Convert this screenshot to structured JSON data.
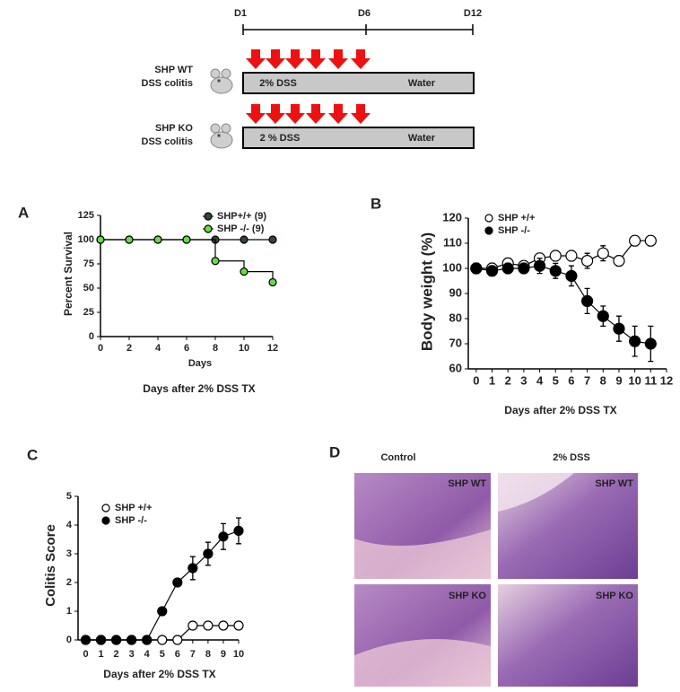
{
  "schema": {
    "timeline_labels": [
      "D1",
      "D6",
      "D12"
    ],
    "groups": [
      {
        "name": "SHP WT",
        "model": "DSS colitis",
        "treatment": "2% DSS",
        "water": "Water"
      },
      {
        "name": "SHP KO",
        "model": "DSS colitis",
        "treatment": "2 % DSS",
        "water": "Water"
      }
    ]
  },
  "chart_data": [
    {
      "type": "line",
      "panel": "A",
      "step": true,
      "ylabel": "Percent Survival",
      "xlabel": "Days",
      "caption": "Days after 2% DSS TX",
      "xlim": [
        0,
        12
      ],
      "xticks": [
        0,
        2,
        4,
        6,
        8,
        10,
        12
      ],
      "ylim": [
        0,
        125
      ],
      "yticks": [
        0,
        25,
        50,
        75,
        100,
        125
      ],
      "x": [
        0,
        2,
        4,
        6,
        8,
        10,
        12
      ],
      "series": [
        {
          "name": "SHP+/+ (9)",
          "color": "#2f4a2f",
          "values": [
            100,
            100,
            100,
            100,
            100,
            100,
            100
          ]
        },
        {
          "name": "SHP -/- (9)",
          "color": "#66dd44",
          "values": [
            100,
            100,
            100,
            100,
            78,
            67,
            56
          ]
        }
      ]
    },
    {
      "type": "line",
      "panel": "B",
      "ylabel": "Body weight (%)",
      "xlabel": "Days after 2% DSS TX",
      "xlim": [
        -0.5,
        12
      ],
      "xticks": [
        0,
        1,
        2,
        3,
        4,
        5,
        6,
        7,
        8,
        9,
        10,
        11,
        12
      ],
      "ylim": [
        60,
        120
      ],
      "yticks": [
        60,
        70,
        80,
        90,
        100,
        110,
        120
      ],
      "x": [
        0,
        1,
        2,
        3,
        4,
        5,
        6,
        7,
        8,
        9,
        10,
        11
      ],
      "series": [
        {
          "name": "SHP +/+",
          "color": "#ffffff",
          "values": [
            100,
            100,
            102,
            101,
            104,
            105,
            105,
            103,
            106,
            103,
            111,
            111
          ],
          "errors": [
            2,
            2,
            2,
            2,
            2,
            2,
            2,
            3,
            3,
            2,
            2,
            2
          ]
        },
        {
          "name": "SHP -/-",
          "color": "#000000",
          "values": [
            100,
            99,
            100,
            100,
            101,
            99,
            97,
            87,
            81,
            76,
            71,
            70
          ],
          "errors": [
            2,
            2,
            2,
            2,
            3,
            3,
            4,
            5,
            4,
            5,
            6,
            7
          ]
        }
      ]
    },
    {
      "type": "line",
      "panel": "C",
      "ylabel": "Colitis Score",
      "xlabel": "Days after 2% DSS TX",
      "xlim": [
        -0.5,
        10
      ],
      "xticks": [
        0,
        1,
        2,
        3,
        4,
        5,
        6,
        7,
        8,
        9,
        10
      ],
      "ylim": [
        0,
        5
      ],
      "yticks": [
        0,
        1,
        2,
        3,
        4,
        5
      ],
      "x": [
        0,
        1,
        2,
        3,
        4,
        5,
        6,
        7,
        8,
        9,
        10
      ],
      "series": [
        {
          "name": "SHP +/+",
          "color": "#ffffff",
          "values": [
            0,
            0,
            0,
            0,
            0,
            0,
            0,
            0.5,
            0.5,
            0.5,
            0.5
          ],
          "errors": [
            0,
            0,
            0,
            0,
            0,
            0,
            0,
            0.05,
            0.05,
            0.05,
            0.05
          ]
        },
        {
          "name": "SHP -/-",
          "color": "#000000",
          "values": [
            0,
            0,
            0,
            0,
            0,
            1,
            2,
            2.5,
            3,
            3.6,
            3.8
          ],
          "errors": [
            0,
            0,
            0,
            0,
            0,
            0.1,
            0.1,
            0.4,
            0.4,
            0.45,
            0.45
          ]
        }
      ]
    }
  ],
  "histology": {
    "panel": "D",
    "columns": [
      "Control",
      "2% DSS"
    ],
    "cells": [
      "SHP WT",
      "SHP WT",
      "SHP KO",
      "SHP KO"
    ]
  }
}
